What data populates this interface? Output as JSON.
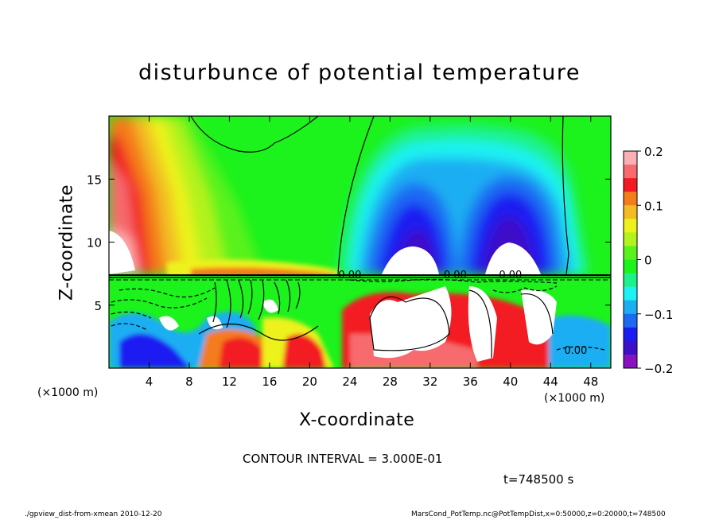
{
  "chart_data": {
    "type": "heatmap",
    "title": "disturbunce of potential temperature",
    "xlabel": "X-coordinate",
    "ylabel": "Z-coordinate",
    "x_units_left": "(×1000 m)",
    "x_units_right": "(×1000 m)",
    "xlim": [
      0,
      50
    ],
    "ylim": [
      0,
      20
    ],
    "x_ticks": [
      "4",
      "8",
      "12",
      "16",
      "20",
      "24",
      "28",
      "32",
      "36",
      "40",
      "44",
      "48"
    ],
    "y_ticks": [
      "5",
      "10",
      "15"
    ],
    "colorbar": {
      "min": -0.2,
      "max": 0.2,
      "ticks": [
        "0.2",
        "0.1",
        "0",
        "−0.1",
        "−0.2"
      ],
      "colors": [
        "#fbb0b4",
        "#f76a6d",
        "#f21b22",
        "#f47c1a",
        "#f3bd22",
        "#edf21a",
        "#b3f21c",
        "#5af21c",
        "#1cf21c",
        "#1cf28a",
        "#1cf2f2",
        "#1caef2",
        "#1c6af2",
        "#1c1cf2",
        "#3c0fc8",
        "#8612c0"
      ]
    },
    "contour_labels": [
      "0.00",
      "0.00",
      "0.00",
      "0.00"
    ],
    "contour_interval_text": "CONTOUR INTERVAL = 3.000E-01",
    "time_text": "t=748500 s",
    "grid": false
  },
  "footer": {
    "left": "./gpview_dist-from-xmean  2010-12-20",
    "right": "MarsCond_PotTemp.nc@PotTempDist,x=0:50000,z=0:20000,t=748500"
  }
}
